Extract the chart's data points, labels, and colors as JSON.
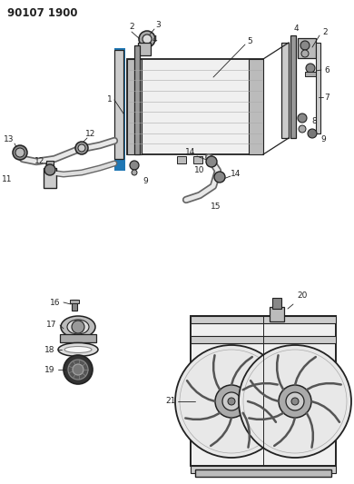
{
  "title": "90107 1900",
  "bg_color": "#ffffff",
  "fig_width": 3.9,
  "fig_height": 5.33,
  "dpi": 100,
  "lc": "#222222",
  "lw_main": 1.2,
  "lw_thin": 0.7,
  "gray_dark": "#555555",
  "gray_mid": "#888888",
  "gray_light": "#cccccc",
  "gray_fill": "#d8d8d8",
  "white": "#ffffff",
  "part_label_size": 6.5
}
